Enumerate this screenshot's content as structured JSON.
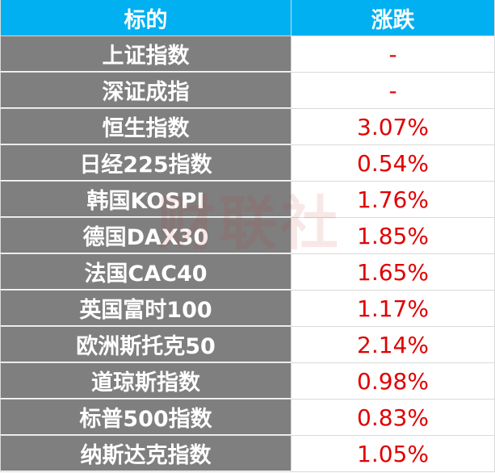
{
  "table": {
    "header": [
      "标的",
      "涨跌"
    ],
    "rows": [
      [
        "上证指数",
        "-"
      ],
      [
        "深证成指",
        "-"
      ],
      [
        "恒生指数",
        "3.07%"
      ],
      [
        "日经225指数",
        "0.54%"
      ],
      [
        "韩国KOSPI",
        "1.76%"
      ],
      [
        "德国DAX30",
        "1.85%"
      ],
      [
        "法国CAC40",
        "1.65%"
      ],
      [
        "英国富时100",
        "1.17%"
      ],
      [
        "欧洲斯托克50",
        "2.14%"
      ],
      [
        "道琼斯指数",
        "0.98%"
      ],
      [
        "标普500指数",
        "0.83%"
      ],
      [
        "纳斯达克指数",
        "1.05%"
      ]
    ]
  },
  "watermark": "财联社"
}
